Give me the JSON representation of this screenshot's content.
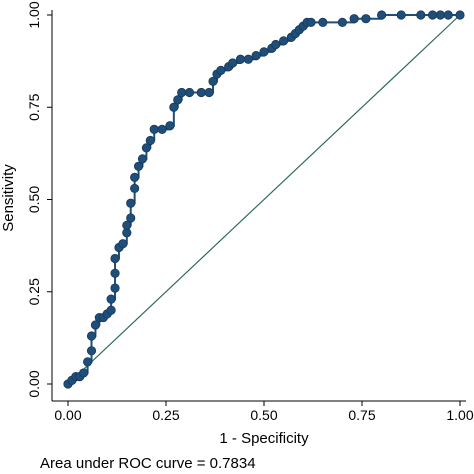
{
  "chart_data": {
    "type": "line",
    "xlabel": "1 - Specificity",
    "ylabel": "Sensitivity",
    "xlim": [
      0,
      1
    ],
    "ylim": [
      0,
      1
    ],
    "x_ticks": [
      "0.00",
      "0.25",
      "0.50",
      "0.75",
      "1.00"
    ],
    "y_ticks": [
      "0.00",
      "0.25",
      "0.50",
      "0.75",
      "1.00"
    ],
    "x_tick_values": [
      0,
      0.25,
      0.5,
      0.75,
      1
    ],
    "y_tick_values": [
      0,
      0.25,
      0.5,
      0.75,
      1
    ],
    "grid": false,
    "legend": "none",
    "note": "Area under ROC curve = 0.7834",
    "colors": {
      "curve": "#1f4e79",
      "reference": "#2e6b5e",
      "axis": "#000000"
    },
    "series": [
      {
        "points": [
          [
            0.0,
            0.0
          ],
          [
            0.01,
            0.01
          ],
          [
            0.02,
            0.02
          ],
          [
            0.03,
            0.02
          ],
          [
            0.04,
            0.03
          ],
          [
            0.05,
            0.06
          ],
          [
            0.06,
            0.09
          ],
          [
            0.06,
            0.13
          ],
          [
            0.07,
            0.16
          ],
          [
            0.08,
            0.18
          ],
          [
            0.09,
            0.18
          ],
          [
            0.1,
            0.19
          ],
          [
            0.11,
            0.2
          ],
          [
            0.11,
            0.23
          ],
          [
            0.12,
            0.26
          ],
          [
            0.12,
            0.3
          ],
          [
            0.12,
            0.34
          ],
          [
            0.13,
            0.37
          ],
          [
            0.14,
            0.38
          ],
          [
            0.15,
            0.41
          ],
          [
            0.15,
            0.43
          ],
          [
            0.16,
            0.45
          ],
          [
            0.16,
            0.49
          ],
          [
            0.17,
            0.53
          ],
          [
            0.17,
            0.56
          ],
          [
            0.18,
            0.59
          ],
          [
            0.19,
            0.61
          ],
          [
            0.2,
            0.64
          ],
          [
            0.21,
            0.66
          ],
          [
            0.22,
            0.69
          ],
          [
            0.24,
            0.69
          ],
          [
            0.26,
            0.7
          ],
          [
            0.27,
            0.75
          ],
          [
            0.28,
            0.77
          ],
          [
            0.29,
            0.79
          ],
          [
            0.31,
            0.79
          ],
          [
            0.34,
            0.79
          ],
          [
            0.36,
            0.79
          ],
          [
            0.37,
            0.82
          ],
          [
            0.38,
            0.84
          ],
          [
            0.39,
            0.85
          ],
          [
            0.41,
            0.86
          ],
          [
            0.42,
            0.87
          ],
          [
            0.44,
            0.88
          ],
          [
            0.46,
            0.88
          ],
          [
            0.48,
            0.89
          ],
          [
            0.5,
            0.9
          ],
          [
            0.52,
            0.91
          ],
          [
            0.53,
            0.92
          ],
          [
            0.55,
            0.93
          ],
          [
            0.57,
            0.94
          ],
          [
            0.58,
            0.95
          ],
          [
            0.59,
            0.96
          ],
          [
            0.6,
            0.97
          ],
          [
            0.61,
            0.98
          ],
          [
            0.62,
            0.98
          ],
          [
            0.65,
            0.98
          ],
          [
            0.7,
            0.98
          ],
          [
            0.73,
            0.99
          ],
          [
            0.76,
            0.99
          ],
          [
            0.8,
            1.0
          ],
          [
            0.85,
            1.0
          ],
          [
            0.9,
            1.0
          ],
          [
            0.93,
            1.0
          ],
          [
            0.95,
            1.0
          ],
          [
            0.97,
            1.0
          ],
          [
            1.0,
            1.0
          ]
        ]
      },
      {
        "points": [
          [
            0,
            0
          ],
          [
            1,
            1
          ]
        ]
      }
    ]
  }
}
